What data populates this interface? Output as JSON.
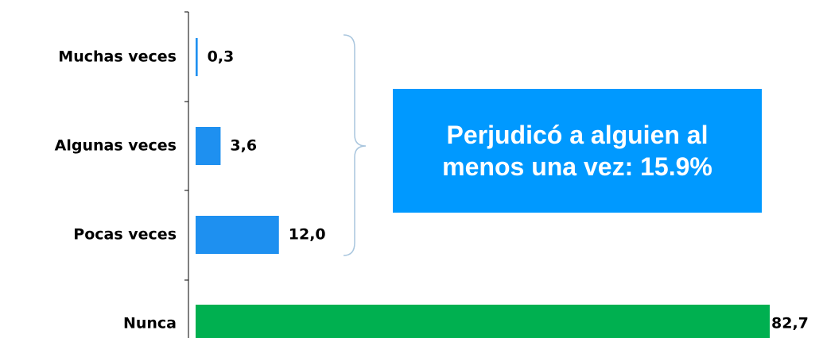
{
  "chart_data": {
    "type": "hbar",
    "categories": [
      "Muchas veces",
      "Algunas veces",
      "Pocas veces",
      "Nunca"
    ],
    "values": [
      0.3,
      3.6,
      12.0,
      82.7
    ],
    "value_labels": [
      "0,3",
      "3,6",
      "12,0",
      "82,7"
    ],
    "colors": [
      "#1e90f0",
      "#1e90f0",
      "#1e90f0",
      "#00b050"
    ],
    "annotation": "Perjudicó a alguien al menos una vez: 15.9%"
  }
}
